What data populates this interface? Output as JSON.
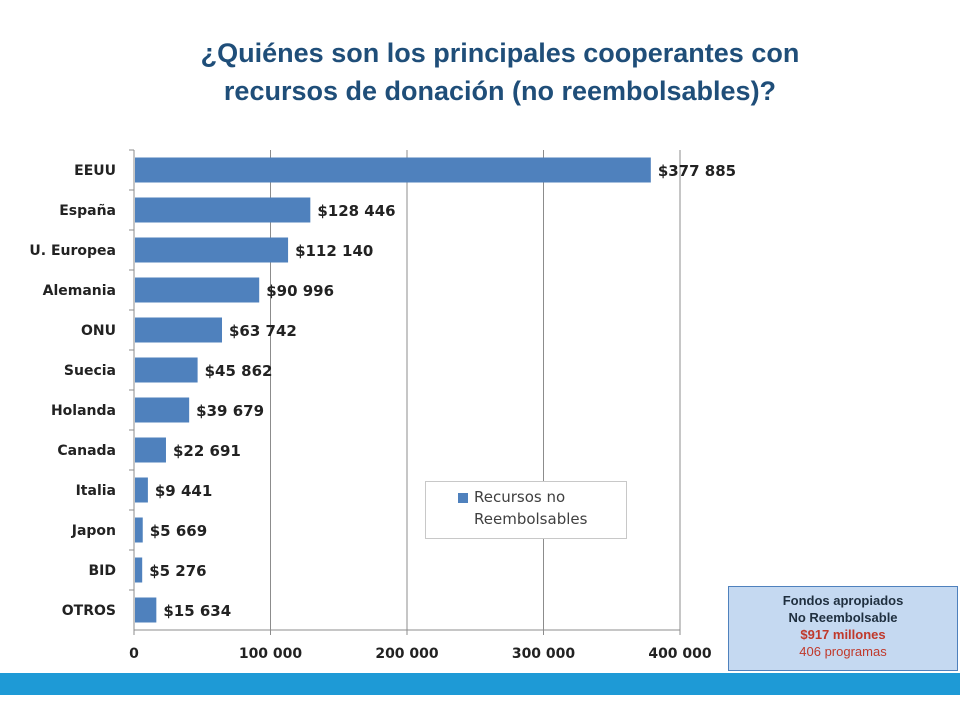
{
  "title": {
    "line1": "¿Quiénes son los principales cooperantes con",
    "line2": "recursos de donación (no reembolsables)?"
  },
  "colors": {
    "bar": "#4f81bd",
    "title": "#1f4e79",
    "footer": "#1e9ad6",
    "info_box_bg": "#c5d9f1",
    "highlight": "#c0392b"
  },
  "chart_data": {
    "type": "bar",
    "orientation": "horizontal",
    "categories": [
      "EEUU",
      "España",
      "U. Europea",
      "Alemania",
      "ONU",
      "Suecia",
      "Holanda",
      "Canada",
      "Italia",
      "Japon",
      "BID",
      "OTROS"
    ],
    "series": [
      {
        "name": "Recursos no Reembolsables",
        "values": [
          377885,
          128446,
          112140,
          90996,
          63742,
          45862,
          39679,
          22691,
          9441,
          5669,
          5276,
          15634
        ]
      }
    ],
    "data_labels": [
      "$377 885",
      "$128 446",
      "$112 140",
      "$90 996",
      "$63 742",
      "$45 862",
      "$39 679",
      "$22 691",
      "$9 441",
      "$5 669",
      "$5 276",
      "$15 634"
    ],
    "x_ticks": [
      0,
      100000,
      200000,
      300000,
      400000
    ],
    "x_tick_labels": [
      "0",
      "100 000",
      "200 000",
      "300 000",
      "400 000"
    ],
    "xlim": [
      0,
      400000
    ],
    "grid": "vertical",
    "legend": "center-right"
  },
  "legend": {
    "label": "Recursos no Reembolsables"
  },
  "info_box": {
    "line1": "Fondos apropiados",
    "line2": "No Reembolsable",
    "line3": "$917 millones",
    "line4": "406 programas"
  }
}
